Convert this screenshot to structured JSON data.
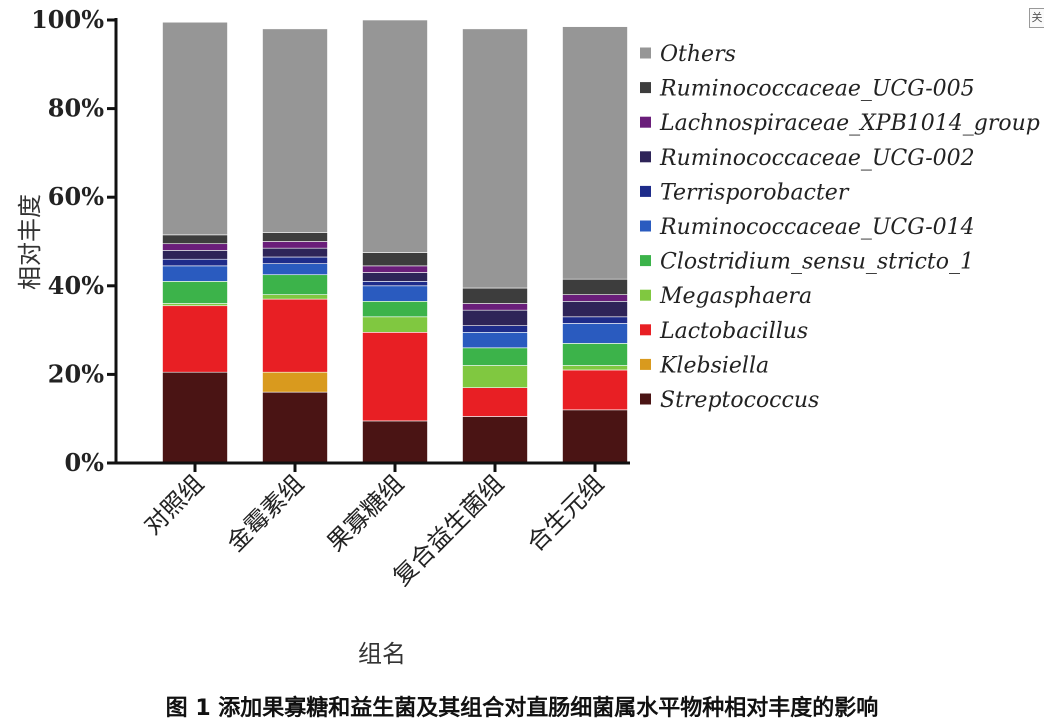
{
  "chart_data": {
    "type": "bar",
    "stacked": true,
    "ylabel": "相对丰度",
    "xlabel": "组名",
    "ylim": [
      0,
      100
    ],
    "yticks": [
      "0%",
      "20%",
      "40%",
      "60%",
      "80%",
      "100%"
    ],
    "categories": [
      "对照组",
      "金霉素组",
      "果寡糖组",
      "复合益生菌组",
      "合生元组"
    ],
    "series": [
      {
        "name": "Streptococcus",
        "color": "#4a1414",
        "values": [
          20.5,
          16,
          9.5,
          10.5,
          12
        ]
      },
      {
        "name": "Klebsiella",
        "color": "#d99a1e",
        "values": [
          0,
          4.5,
          0,
          0,
          0
        ]
      },
      {
        "name": "Lactobacillus",
        "color": "#e81f24",
        "values": [
          15,
          16.5,
          20,
          6.5,
          9
        ]
      },
      {
        "name": "Megasphaera",
        "color": "#80c840",
        "values": [
          0.5,
          1,
          3.5,
          5,
          1
        ]
      },
      {
        "name": "Clostridium_sensu_stricto_1",
        "color": "#3cb34a",
        "values": [
          5,
          4.5,
          3.5,
          4,
          5
        ]
      },
      {
        "name": "Ruminococcaceae_UCG-014",
        "color": "#2a5bbf",
        "values": [
          3.5,
          2.5,
          3.5,
          3.5,
          4.5
        ]
      },
      {
        "name": "Terrisporobacter",
        "color": "#1e2c8a",
        "values": [
          1.5,
          1.5,
          1,
          1.5,
          1.5
        ]
      },
      {
        "name": "Ruminococcaceae_UCG-002",
        "color": "#2e2458",
        "values": [
          2,
          2,
          2,
          3.5,
          3.5
        ]
      },
      {
        "name": "Lachnospiraceae_XPB1014_group",
        "color": "#6a1e7a",
        "values": [
          1.5,
          1.5,
          1.5,
          1.5,
          1.5
        ]
      },
      {
        "name": "Ruminococcaceae_UCG-005",
        "color": "#3d3d3d",
        "values": [
          2,
          2,
          3,
          3.5,
          3.5
        ]
      },
      {
        "name": "Others",
        "color": "#969696",
        "values": [
          48,
          46,
          52.5,
          58.5,
          57
        ]
      }
    ],
    "legend_order": [
      "Others",
      "Ruminococcaceae_UCG-005",
      "Lachnospiraceae_XPB1014_group",
      "Ruminococcaceae_UCG-002",
      "Terrisporobacter",
      "Ruminococcaceae_UCG-014",
      "Clostridium_sensu_stricto_1",
      "Megasphaera",
      "Lactobacillus",
      "Klebsiella",
      "Streptococcus"
    ],
    "legend_position": "right"
  },
  "caption": "图 1  添加果寡糖和益生菌及其组合对直肠细菌属水平物种相对丰度的影响",
  "corner_label": "关"
}
